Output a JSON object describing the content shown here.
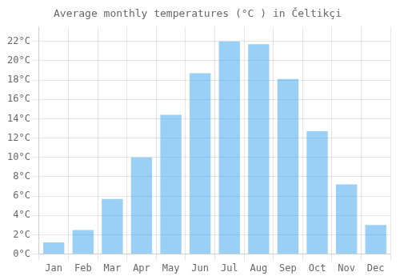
{
  "chart_data": {
    "type": "bar",
    "title": "Average monthly temperatures (°C ) in Čeltikçi",
    "categories": [
      "Jan",
      "Feb",
      "Mar",
      "Apr",
      "May",
      "Jun",
      "Jul",
      "Aug",
      "Sep",
      "Oct",
      "Nov",
      "Dec"
    ],
    "values": [
      1.2,
      2.5,
      5.7,
      10.0,
      14.4,
      18.7,
      22.0,
      21.7,
      18.1,
      12.7,
      7.2,
      3.0
    ],
    "ylim": [
      0,
      23.5
    ],
    "yticks": [
      {
        "value": 0,
        "label": "0°C"
      },
      {
        "value": 2,
        "label": "2°C"
      },
      {
        "value": 4,
        "label": "4°C"
      },
      {
        "value": 6,
        "label": "6°C"
      },
      {
        "value": 8,
        "label": "8°C"
      },
      {
        "value": 10,
        "label": "10°C"
      },
      {
        "value": 12,
        "label": "12°C"
      },
      {
        "value": 14,
        "label": "14°C"
      },
      {
        "value": 16,
        "label": "16°C"
      },
      {
        "value": 18,
        "label": "18°C"
      },
      {
        "value": 20,
        "label": "20°C"
      },
      {
        "value": 22,
        "label": "22°C"
      }
    ],
    "grid": true
  }
}
